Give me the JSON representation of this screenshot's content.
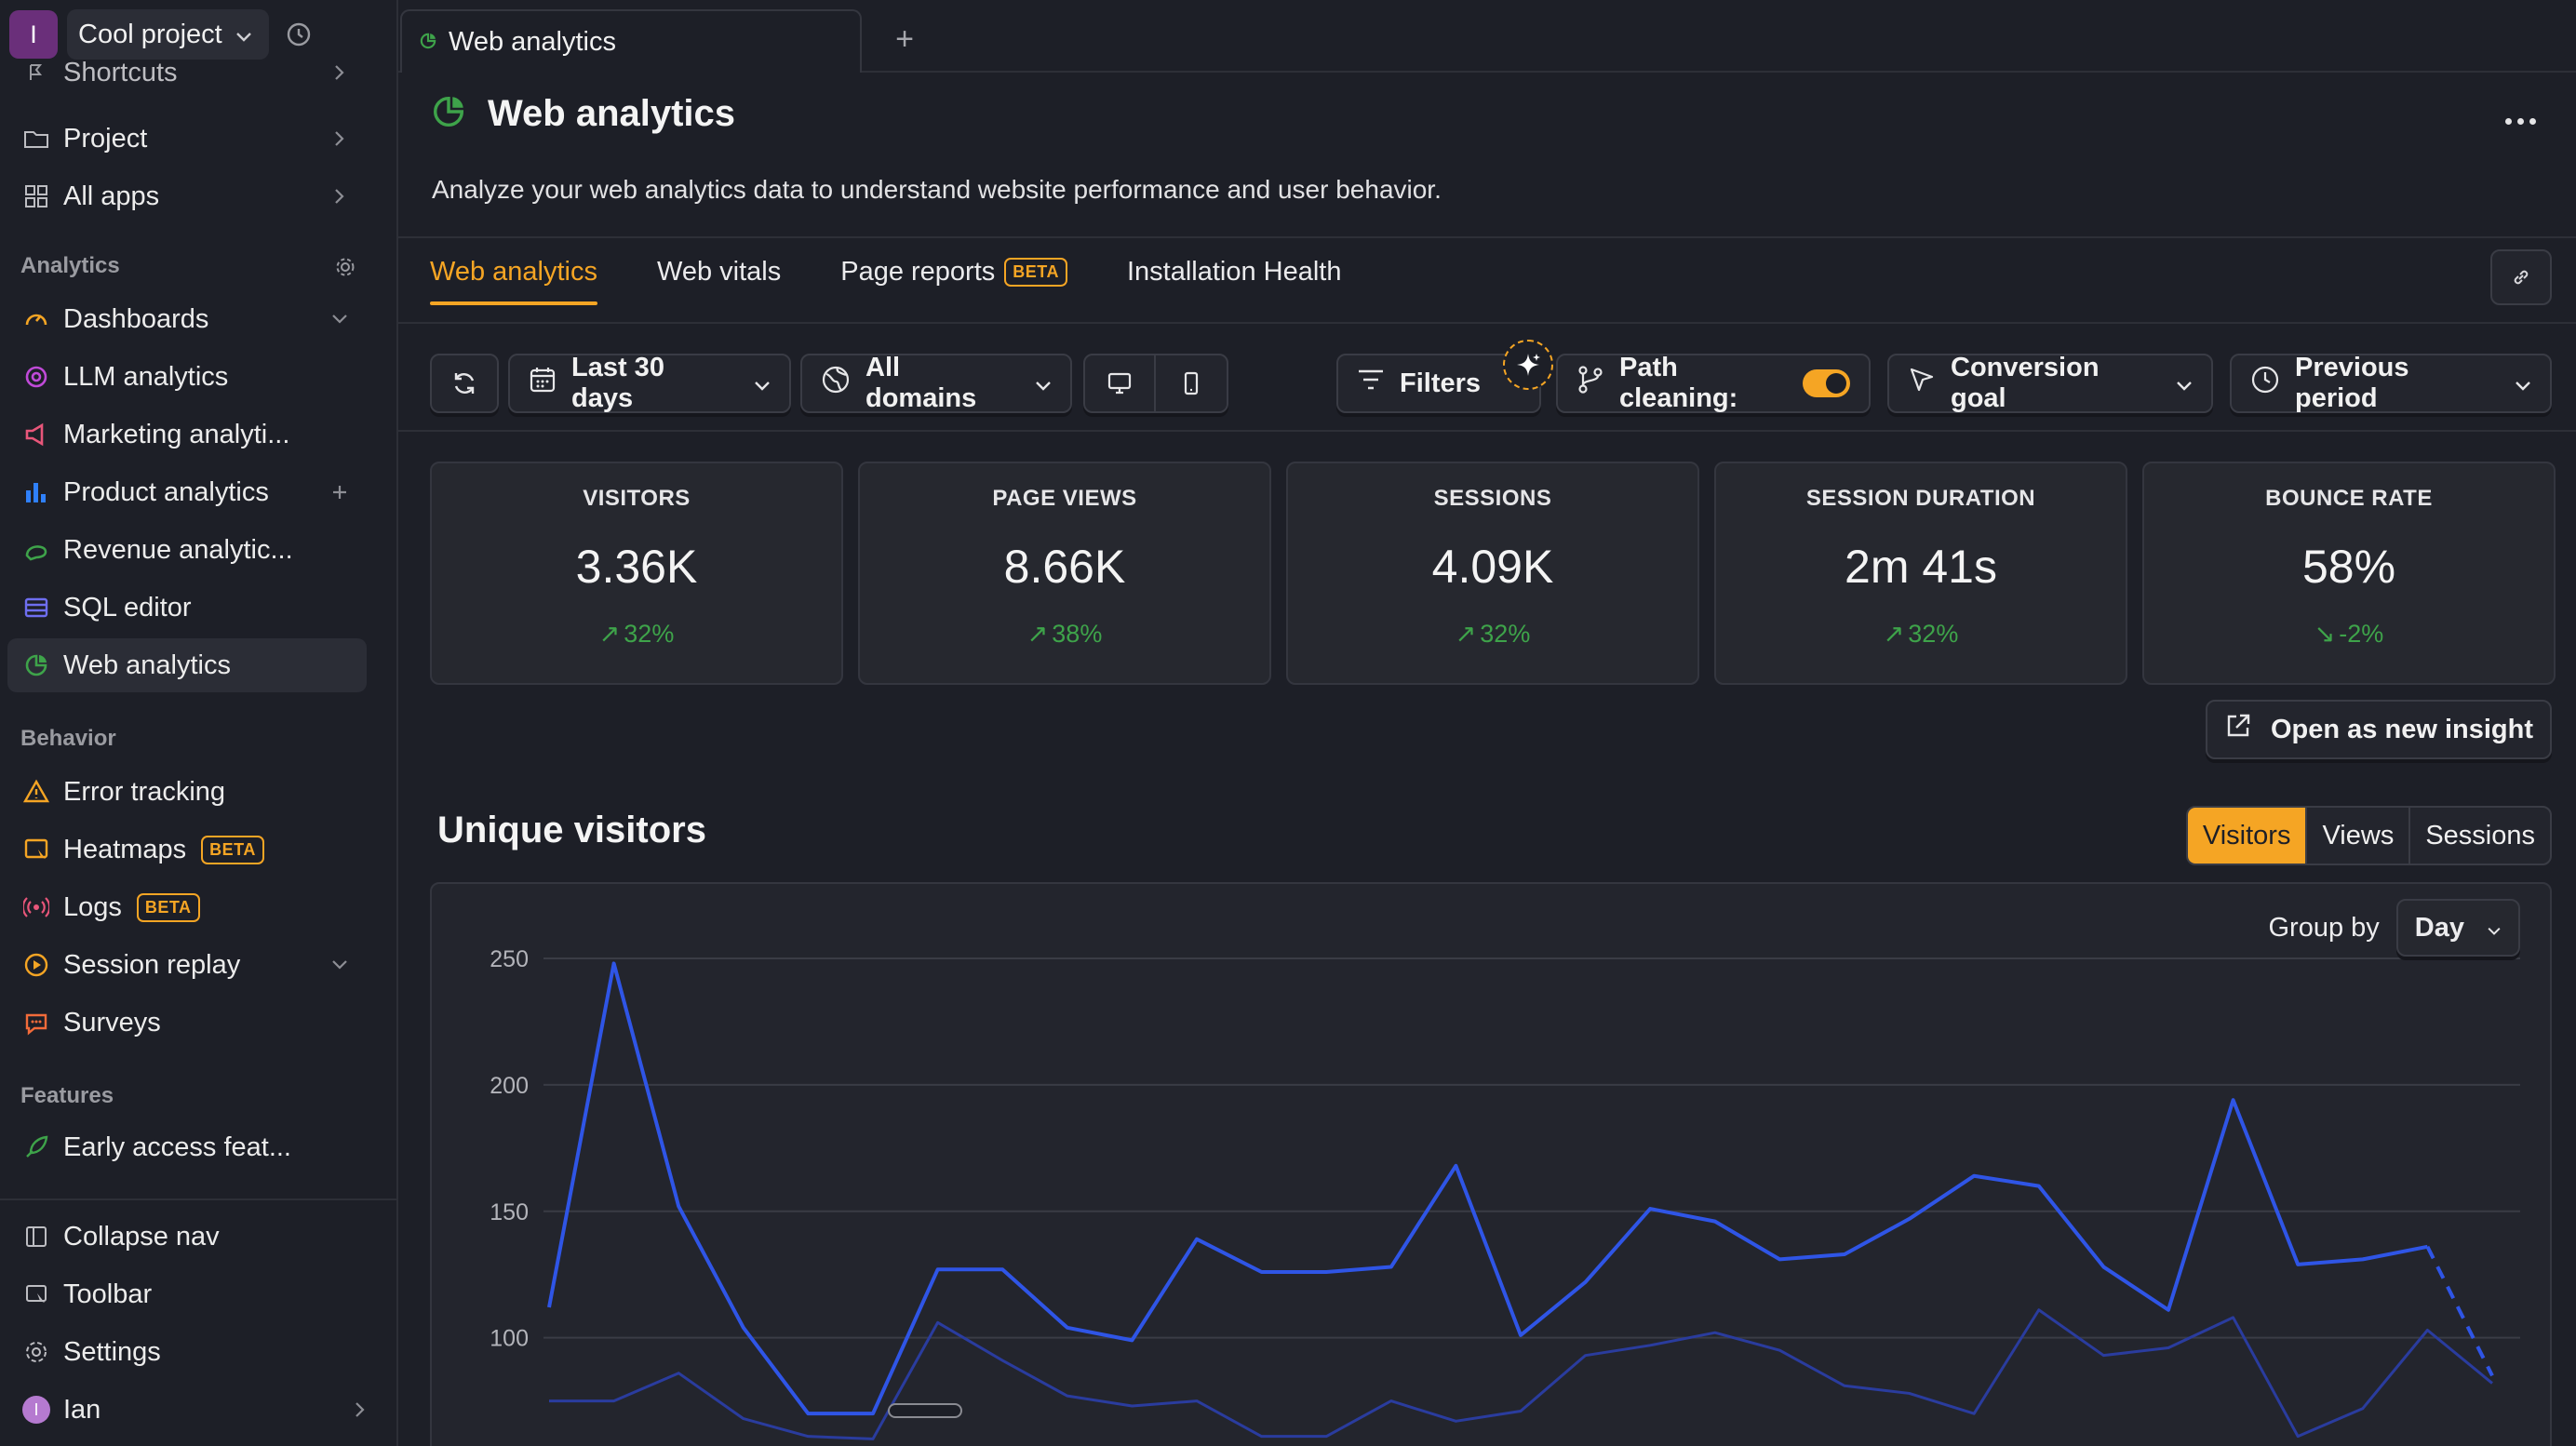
{
  "project": {
    "avatar_letter": "I",
    "name": "Cool project"
  },
  "sidebar": {
    "top_items": [
      {
        "label": "Shortcuts",
        "icon": "shortcut-icon"
      },
      {
        "label": "Project",
        "icon": "folder-icon"
      },
      {
        "label": "All apps",
        "icon": "apps-grid-icon"
      }
    ],
    "sections": {
      "analytics": "Analytics",
      "behavior": "Behavior",
      "features": "Features"
    },
    "analytics_items": [
      {
        "label": "Dashboards",
        "icon": "dashboard-icon",
        "color": "#f5a524"
      },
      {
        "label": "LLM analytics",
        "icon": "llm-icon",
        "color": "#c04ad8"
      },
      {
        "label": "Marketing analyti...",
        "icon": "marketing-icon",
        "color": "#e8567a"
      },
      {
        "label": "Product analytics",
        "icon": "bar-chart-icon",
        "color": "#2f80fa"
      },
      {
        "label": "Revenue analytic...",
        "icon": "revenue-icon",
        "color": "#3ea34a"
      },
      {
        "label": "SQL editor",
        "icon": "sql-icon",
        "color": "#6e6ef0"
      },
      {
        "label": "Web analytics",
        "icon": "web-analytics-icon",
        "color": "#3ea34a"
      }
    ],
    "behavior_items": [
      {
        "label": "Error tracking",
        "icon": "warning-icon",
        "color": "#f5a524"
      },
      {
        "label": "Heatmaps",
        "icon": "heatmap-icon",
        "color": "#f5a524",
        "badge": "BETA"
      },
      {
        "label": "Logs",
        "icon": "logs-icon",
        "color": "#e8567a",
        "badge": "BETA"
      },
      {
        "label": "Session replay",
        "icon": "replay-icon",
        "color": "#f5a524"
      },
      {
        "label": "Surveys",
        "icon": "survey-icon",
        "color": "#f36b3a"
      }
    ],
    "feature_items": [
      {
        "label": "Early access feat...",
        "icon": "rocket-icon",
        "color": "#3ea34a"
      }
    ],
    "bottom_items": [
      {
        "label": "Collapse nav",
        "icon": "collapse-icon"
      },
      {
        "label": "Toolbar",
        "icon": "toolbar-icon"
      },
      {
        "label": "Settings",
        "icon": "gear-icon"
      },
      {
        "label": "Ian",
        "icon": "user-avatar"
      }
    ],
    "user_initial": "I"
  },
  "doc_tab": {
    "label": "Web analytics"
  },
  "page": {
    "title": "Web analytics",
    "description": "Analyze your web analytics data to understand website performance and user behavior."
  },
  "tabs": [
    {
      "label": "Web analytics",
      "active": true
    },
    {
      "label": "Web vitals"
    },
    {
      "label": "Page reports",
      "badge": "BETA"
    },
    {
      "label": "Installation Health"
    }
  ],
  "toolbar": {
    "date_range": "Last 30 days",
    "domain": "All domains",
    "filters": "Filters",
    "path_cleaning": "Path cleaning:",
    "path_cleaning_on": true,
    "conversion_goal": "Conversion goal",
    "compare": "Previous period"
  },
  "stats": [
    {
      "label": "VISITORS",
      "value": "3.36K",
      "change": "32%",
      "trend": "up"
    },
    {
      "label": "PAGE VIEWS",
      "value": "8.66K",
      "change": "38%",
      "trend": "up"
    },
    {
      "label": "SESSIONS",
      "value": "4.09K",
      "change": "32%",
      "trend": "up"
    },
    {
      "label": "SESSION DURATION",
      "value": "2m 41s",
      "change": "32%",
      "trend": "up"
    },
    {
      "label": "BOUNCE RATE",
      "value": "58%",
      "change": "-2%",
      "trend": "down-good"
    }
  ],
  "open_insight": "Open as new insight",
  "chart_section": {
    "title": "Unique visitors",
    "toggle": [
      "Visitors",
      "Views",
      "Sessions"
    ],
    "toggle_selected": "Visitors",
    "group_by_label": "Group by",
    "group_by_value": "Day"
  },
  "colors": {
    "accent": "#f5a524",
    "positive": "#3ea34a",
    "current_series": "#2f55e6",
    "previous_series": "#2a3c9e"
  },
  "chart_data": {
    "type": "line",
    "y_ticks": [
      "250",
      "200",
      "150",
      "100"
    ],
    "ylim": [
      80,
      250
    ],
    "grid": true,
    "legend": false,
    "series": [
      {
        "values": [
          112,
          248,
          152,
          104,
          70,
          70,
          127,
          127,
          104,
          99,
          139,
          126,
          126,
          128,
          168,
          101,
          122,
          151,
          146,
          131,
          133,
          147,
          164,
          160,
          128,
          111,
          194,
          129,
          131,
          136,
          85
        ],
        "last_segment_dashed": true
      },
      {
        "values": [
          75,
          75,
          86,
          68,
          61,
          60,
          106,
          91,
          77,
          73,
          75,
          61,
          61,
          75,
          67,
          71,
          93,
          97,
          102,
          95,
          81,
          78,
          70,
          111,
          93,
          96,
          108,
          61,
          72,
          103,
          82
        ]
      }
    ]
  }
}
